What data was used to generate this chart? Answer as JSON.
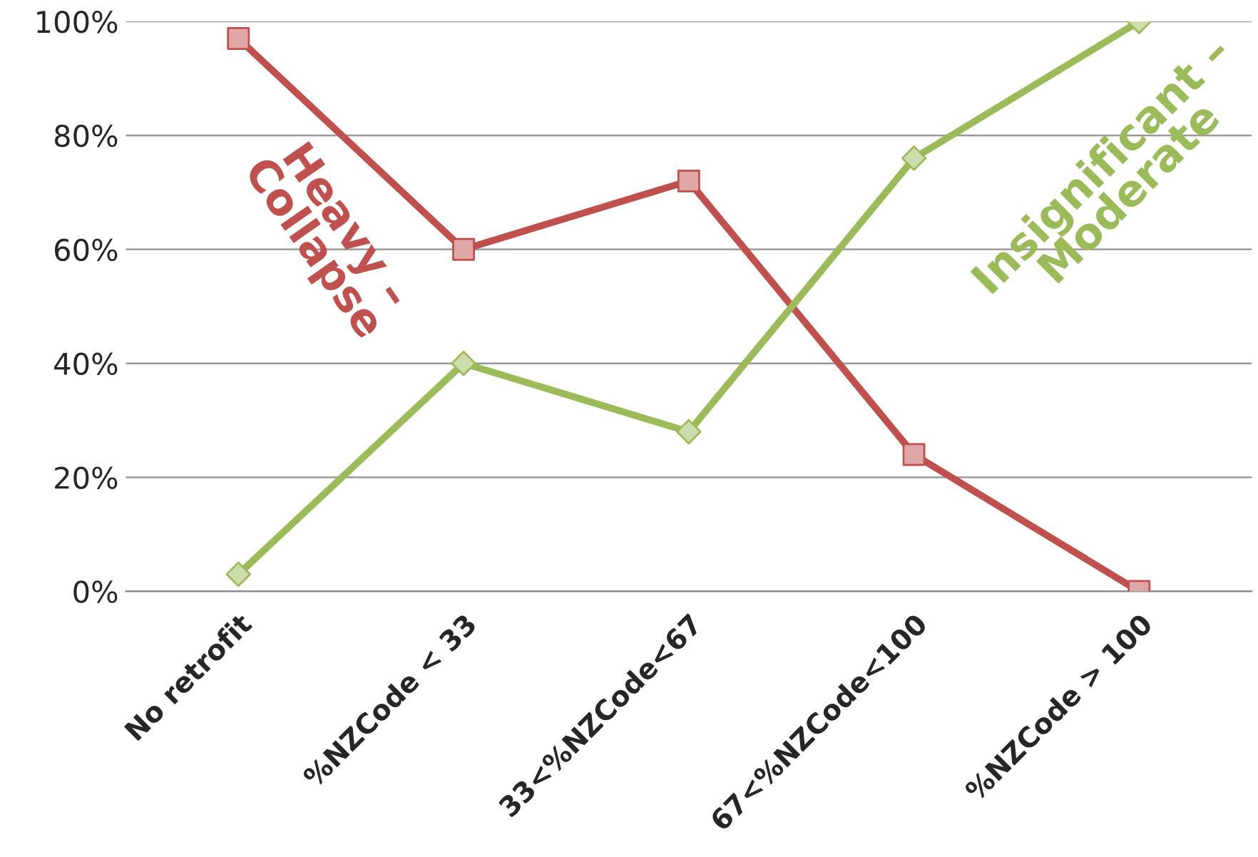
{
  "chart_data": {
    "type": "line",
    "categories": [
      "No retrofit",
      "%NZCode < 33",
      "33<%NZCode<67",
      "67<%NZCode<100",
      "%NZCode > 100"
    ],
    "series": [
      {
        "name": "Heavy – Collapse",
        "color": "#c0504d",
        "marker": "square",
        "values": [
          97,
          60,
          72,
          24,
          0
        ]
      },
      {
        "name": "Insignificant – Moderate",
        "color": "#9bbb59",
        "marker": "diamond",
        "values": [
          3,
          40,
          28,
          76,
          100
        ]
      }
    ],
    "ylim": [
      0,
      100
    ],
    "yticks": [
      {
        "value": 0,
        "label": "0%"
      },
      {
        "value": 20,
        "label": "20%"
      },
      {
        "value": 40,
        "label": "40%"
      },
      {
        "value": 60,
        "label": "60%"
      },
      {
        "value": 80,
        "label": "80%"
      },
      {
        "value": 100,
        "label": "100%"
      }
    ],
    "grid": "y",
    "legend": false,
    "line_style": "solid"
  }
}
